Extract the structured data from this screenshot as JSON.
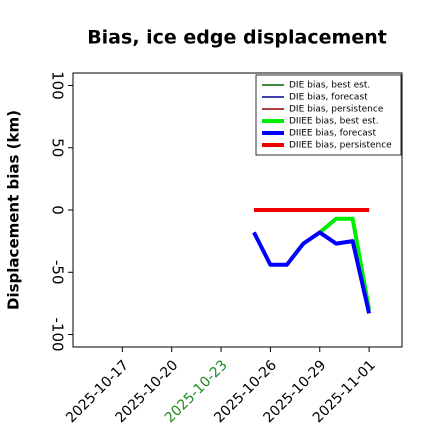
{
  "chart_data": {
    "type": "line",
    "title": "Bias, ice edge displacement",
    "ylabel": "Displacement bias (km)",
    "x": [
      "2025-10-25",
      "2025-10-26",
      "2025-10-27",
      "2025-10-28",
      "2025-10-29",
      "2025-10-30",
      "2025-10-31",
      "2025-11-01"
    ],
    "xlim": [
      "2025-10-14",
      "2025-11-03"
    ],
    "xticks": [
      "2025-10-17",
      "2025-10-20",
      "2025-10-23",
      "2025-10-26",
      "2025-10-29",
      "2025-11-01"
    ],
    "xtick_colors": [
      "#000000",
      "#000000",
      "#228b22",
      "#000000",
      "#000000",
      "#000000"
    ],
    "ylim": [
      -110,
      110
    ],
    "yticks": [
      -100,
      -50,
      0,
      50,
      100
    ],
    "legend": "upper right",
    "grid": false,
    "series": [
      {
        "name": "DIE bias, best est.",
        "color": "#006400",
        "width": 1.5,
        "values": [
          null,
          null,
          null,
          null,
          -18,
          -7,
          -7,
          -80
        ]
      },
      {
        "name": "DIE bias, forecast",
        "color": "#00008b",
        "width": 1.5,
        "values": [
          -18,
          -44,
          -44,
          -27,
          -18,
          -27,
          -25,
          -83
        ]
      },
      {
        "name": "DIE bias, persistence",
        "color": "#8b0000",
        "width": 1.5,
        "values": [
          0,
          0,
          0,
          0,
          0,
          0,
          0,
          0
        ]
      },
      {
        "name": "DIIEE bias, best est.",
        "color": "#00ee00",
        "width": 4,
        "values": [
          null,
          null,
          null,
          null,
          -18,
          -7,
          -7,
          -80
        ]
      },
      {
        "name": "DIIEE bias, forecast",
        "color": "#0000ff",
        "width": 4,
        "values": [
          -18,
          -44,
          -44,
          -27,
          -18,
          -27,
          -25,
          -83
        ]
      },
      {
        "name": "DIIEE bias, persistence",
        "color": "#ee0000",
        "width": 4,
        "values": [
          0,
          0,
          0,
          0,
          0,
          0,
          0,
          0
        ]
      }
    ]
  }
}
